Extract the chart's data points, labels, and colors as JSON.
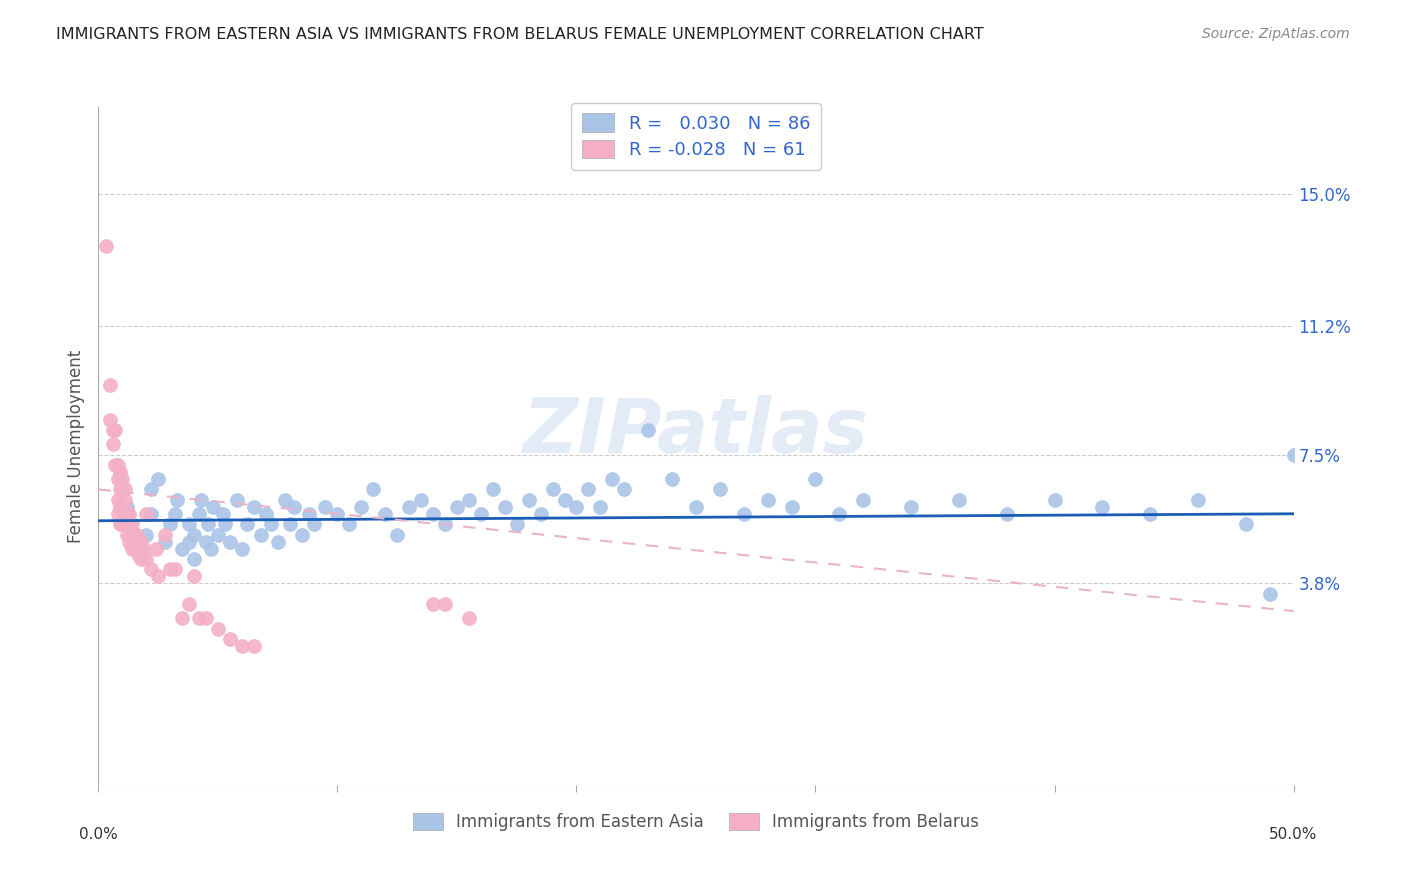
{
  "title": "IMMIGRANTS FROM EASTERN ASIA VS IMMIGRANTS FROM BELARUS FEMALE UNEMPLOYMENT CORRELATION CHART",
  "source": "Source: ZipAtlas.com",
  "ylabel": "Female Unemployment",
  "ytick_labels": [
    "15.0%",
    "11.2%",
    "7.5%",
    "3.8%"
  ],
  "ytick_values": [
    0.15,
    0.112,
    0.075,
    0.038
  ],
  "xmin": 0.0,
  "xmax": 0.5,
  "ymin": -0.02,
  "ymax": 0.175,
  "blue_R": 0.03,
  "blue_N": 86,
  "pink_R": -0.028,
  "pink_N": 61,
  "blue_color": "#aac4e8",
  "pink_color": "#f4afc5",
  "blue_line_color": "#1a5db5",
  "pink_line_color": "#e8b4c8",
  "legend_label_blue": "Immigrants from Eastern Asia",
  "legend_label_pink": "Immigrants from Belarus",
  "legend_text_color": "#3366cc",
  "watermark": "ZIPatlas",
  "xtick_positions": [
    0.0,
    0.1,
    0.2,
    0.3,
    0.4,
    0.5
  ],
  "blue_scatter_x": [
    0.01,
    0.012,
    0.018,
    0.02,
    0.022,
    0.022,
    0.025,
    0.028,
    0.03,
    0.032,
    0.033,
    0.035,
    0.038,
    0.038,
    0.04,
    0.04,
    0.042,
    0.043,
    0.045,
    0.046,
    0.047,
    0.048,
    0.05,
    0.052,
    0.053,
    0.055,
    0.058,
    0.06,
    0.062,
    0.065,
    0.068,
    0.07,
    0.072,
    0.075,
    0.078,
    0.08,
    0.082,
    0.085,
    0.088,
    0.09,
    0.095,
    0.1,
    0.105,
    0.11,
    0.115,
    0.12,
    0.125,
    0.13,
    0.135,
    0.14,
    0.145,
    0.15,
    0.155,
    0.16,
    0.165,
    0.17,
    0.175,
    0.18,
    0.185,
    0.19,
    0.195,
    0.2,
    0.205,
    0.21,
    0.215,
    0.22,
    0.23,
    0.24,
    0.25,
    0.26,
    0.27,
    0.28,
    0.29,
    0.3,
    0.31,
    0.32,
    0.34,
    0.36,
    0.38,
    0.4,
    0.42,
    0.44,
    0.46,
    0.48,
    0.49,
    0.5
  ],
  "blue_scatter_y": [
    0.055,
    0.06,
    0.048,
    0.052,
    0.058,
    0.065,
    0.068,
    0.05,
    0.055,
    0.058,
    0.062,
    0.048,
    0.05,
    0.055,
    0.045,
    0.052,
    0.058,
    0.062,
    0.05,
    0.055,
    0.048,
    0.06,
    0.052,
    0.058,
    0.055,
    0.05,
    0.062,
    0.048,
    0.055,
    0.06,
    0.052,
    0.058,
    0.055,
    0.05,
    0.062,
    0.055,
    0.06,
    0.052,
    0.058,
    0.055,
    0.06,
    0.058,
    0.055,
    0.06,
    0.065,
    0.058,
    0.052,
    0.06,
    0.062,
    0.058,
    0.055,
    0.06,
    0.062,
    0.058,
    0.065,
    0.06,
    0.055,
    0.062,
    0.058,
    0.065,
    0.062,
    0.06,
    0.065,
    0.06,
    0.068,
    0.065,
    0.082,
    0.068,
    0.06,
    0.065,
    0.058,
    0.062,
    0.06,
    0.068,
    0.058,
    0.062,
    0.06,
    0.062,
    0.058,
    0.062,
    0.06,
    0.058,
    0.062,
    0.055,
    0.035,
    0.075
  ],
  "pink_scatter_x": [
    0.003,
    0.005,
    0.005,
    0.006,
    0.006,
    0.007,
    0.007,
    0.008,
    0.008,
    0.008,
    0.008,
    0.009,
    0.009,
    0.009,
    0.009,
    0.01,
    0.01,
    0.01,
    0.01,
    0.011,
    0.011,
    0.011,
    0.012,
    0.012,
    0.012,
    0.013,
    0.013,
    0.013,
    0.014,
    0.014,
    0.014,
    0.015,
    0.015,
    0.015,
    0.016,
    0.016,
    0.017,
    0.017,
    0.018,
    0.018,
    0.019,
    0.02,
    0.02,
    0.022,
    0.024,
    0.025,
    0.028,
    0.03,
    0.032,
    0.035,
    0.038,
    0.04,
    0.042,
    0.045,
    0.05,
    0.055,
    0.06,
    0.065,
    0.14,
    0.145,
    0.155
  ],
  "pink_scatter_y": [
    0.135,
    0.095,
    0.085,
    0.082,
    0.078,
    0.082,
    0.072,
    0.072,
    0.068,
    0.062,
    0.058,
    0.07,
    0.065,
    0.06,
    0.055,
    0.068,
    0.065,
    0.06,
    0.055,
    0.065,
    0.062,
    0.058,
    0.058,
    0.055,
    0.052,
    0.058,
    0.055,
    0.05,
    0.055,
    0.052,
    0.048,
    0.052,
    0.05,
    0.048,
    0.052,
    0.048,
    0.05,
    0.046,
    0.05,
    0.045,
    0.048,
    0.058,
    0.045,
    0.042,
    0.048,
    0.04,
    0.052,
    0.042,
    0.042,
    0.028,
    0.032,
    0.04,
    0.028,
    0.028,
    0.025,
    0.022,
    0.02,
    0.02,
    0.032,
    0.032,
    0.028
  ],
  "blue_trend_y0": 0.056,
  "blue_trend_y1": 0.058,
  "pink_trend_y0": 0.065,
  "pink_trend_y1": 0.03
}
